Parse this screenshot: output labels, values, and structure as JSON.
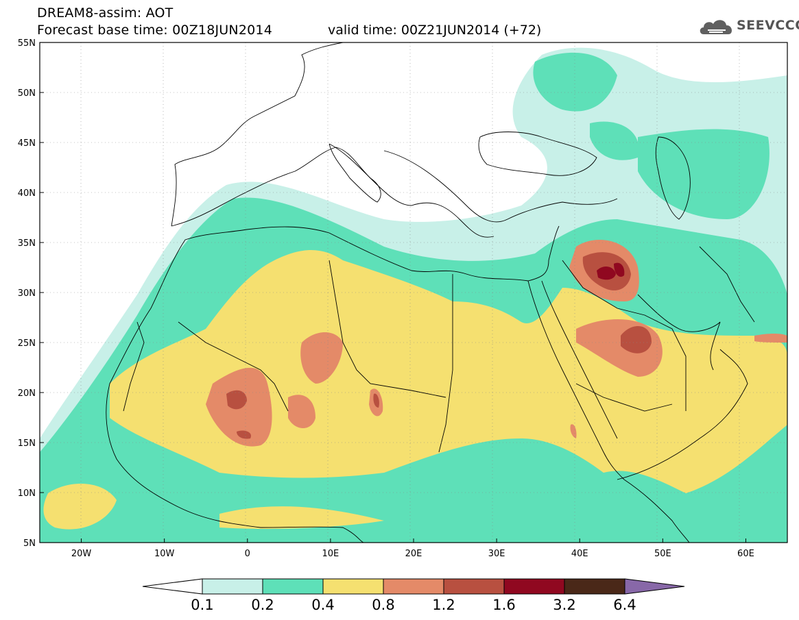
{
  "header": {
    "line1": "DREAM8-assim: AOT",
    "line2": "Forecast base time: 00Z18JUN2014",
    "valid": "valid time: 00Z21JUN2014 (+72)",
    "logo_text": "SEEVCCC"
  },
  "map": {
    "variable": "AOT",
    "projection": "lat-lon",
    "lon_range": [
      -25,
      65
    ],
    "lat_range": [
      5,
      55
    ],
    "lat_ticks": [
      "55N",
      "50N",
      "45N",
      "40N",
      "35N",
      "30N",
      "25N",
      "20N",
      "15N",
      "10N",
      "5N"
    ],
    "lon_ticks": [
      "20W",
      "10W",
      "0",
      "10E",
      "20E",
      "30E",
      "40E",
      "50E",
      "60E"
    ]
  },
  "colorbar": {
    "labels": [
      "0.1",
      "0.2",
      "0.4",
      "0.8",
      "1.2",
      "1.6",
      "3.2",
      "6.4"
    ],
    "colors": [
      "#ffffff",
      "#c8f0e8",
      "#5ee0b8",
      "#f5e070",
      "#e48a68",
      "#b85040",
      "#900820",
      "#4a2818",
      "#8868a8"
    ]
  }
}
